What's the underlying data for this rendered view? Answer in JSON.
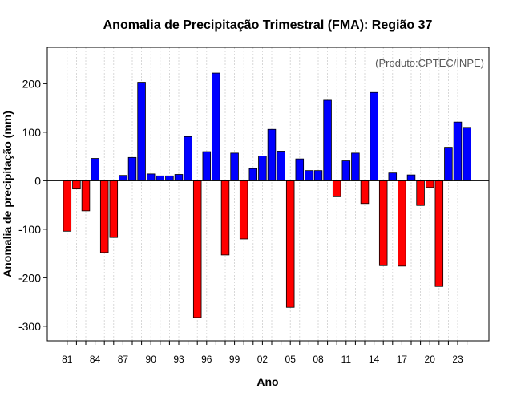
{
  "chart_data": {
    "type": "bar",
    "title": "Anomalia de Precipitação Trimestral (FMA): Região 37",
    "xlabel": "Ano",
    "ylabel": "Anomalia de precipitação (mm)",
    "source_note": "(Produto:CPTEC/INPE)",
    "ylim": [
      -330,
      275
    ],
    "yticks": [
      -300,
      -200,
      -100,
      0,
      100,
      200
    ],
    "ytick_labels": [
      "-300",
      "-200",
      "-100",
      "0",
      "100",
      "200"
    ],
    "xtick_labels": [
      "81",
      "84",
      "87",
      "90",
      "93",
      "96",
      "99",
      "02",
      "05",
      "08",
      "11",
      "14",
      "17",
      "20",
      "23"
    ],
    "xtick_every": 3,
    "grid": true,
    "colors": {
      "positive": "#0000ff",
      "negative": "#ff0000",
      "edge": "#000000",
      "grid": "#cfcfcf"
    },
    "categories": [
      "81",
      "82",
      "83",
      "84",
      "85",
      "86",
      "87",
      "88",
      "89",
      "90",
      "91",
      "92",
      "93",
      "94",
      "95",
      "96",
      "97",
      "98",
      "99",
      "00",
      "01",
      "02",
      "03",
      "04",
      "05",
      "06",
      "07",
      "08",
      "09",
      "10",
      "11",
      "12",
      "13",
      "14",
      "15",
      "16",
      "17",
      "18",
      "19",
      "20",
      "21",
      "22",
      "23",
      "24"
    ],
    "values": [
      -104,
      -17,
      -62,
      46,
      -148,
      -117,
      11,
      48,
      203,
      14,
      10,
      10,
      13,
      91,
      -282,
      60,
      222,
      -153,
      57,
      -120,
      25,
      51,
      106,
      61,
      -261,
      45,
      21,
      21,
      166,
      -33,
      41,
      57,
      -47,
      182,
      -175,
      16,
      -176,
      12,
      -51,
      -14,
      -218,
      69,
      121,
      110
    ]
  }
}
